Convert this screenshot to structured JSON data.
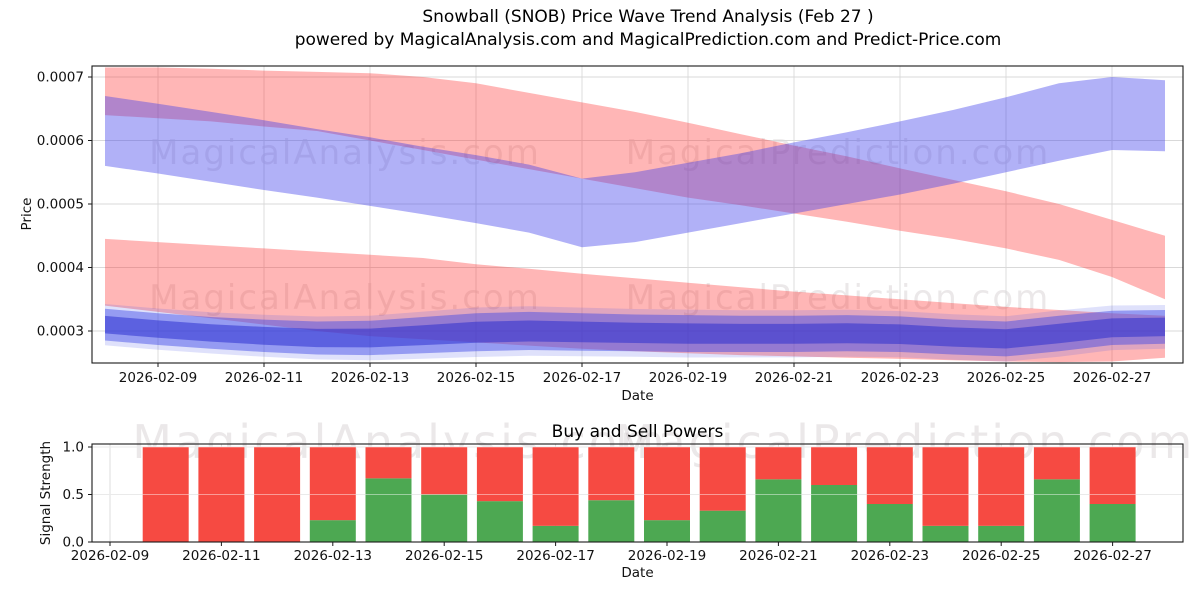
{
  "title": {
    "line1": "Snowball (SNOB) Price Wave Trend Analysis (Feb 27 )",
    "line2": "powered by MagicalAnalysis.com and MagicalPrediction.com and Predict-Price.com"
  },
  "watermarks": {
    "analysis": "MagicalAnalysis.com",
    "prediction": "MagicalPrediction.com"
  },
  "colors": {
    "band_red": "rgba(255,45,45,0.35)",
    "band_blue": "rgba(60,60,235,0.40)",
    "price_band_outer": "rgba(60,70,230,0.45)",
    "price_band_inner": "rgba(35,40,205,0.50)",
    "price_band_fringe": "rgba(80,90,235,0.18)",
    "bar_green": "#4da852",
    "bar_red": "#f64a42",
    "grid": "#d9d9d9",
    "grid_over_bars": "rgba(255,255,255,0.45)",
    "spine": "#1a1a1a",
    "watermark": "rgba(120,100,105,0.15)",
    "text": "#111111"
  },
  "chart_data": [
    {
      "id": "price_wave_trend",
      "type": "area",
      "xlabel": "Date",
      "ylabel": "Price",
      "grid": true,
      "legend": "none",
      "ylim": [
        0.00025,
        0.000717
      ],
      "x_ticks": [
        "2026-02-09",
        "2026-02-11",
        "2026-02-13",
        "2026-02-15",
        "2026-02-17",
        "2026-02-19",
        "2026-02-21",
        "2026-02-23",
        "2026-02-25",
        "2026-02-27"
      ],
      "y_ticks": [
        {
          "v": 0.0003,
          "label": "0.0003"
        },
        {
          "v": 0.0004,
          "label": "0.0004"
        },
        {
          "v": 0.0005,
          "label": "0.0005"
        },
        {
          "v": 0.0006,
          "label": "0.0006"
        },
        {
          "v": 0.0007,
          "label": "0.0007"
        }
      ],
      "dates": [
        "2026-02-08",
        "2026-02-09",
        "2026-02-10",
        "2026-02-11",
        "2026-02-12",
        "2026-02-13",
        "2026-02-14",
        "2026-02-15",
        "2026-02-16",
        "2026-02-17",
        "2026-02-18",
        "2026-02-19",
        "2026-02-20",
        "2026-02-21",
        "2026-02-22",
        "2026-02-23",
        "2026-02-24",
        "2026-02-25",
        "2026-02-26",
        "2026-02-27",
        "2026-02-28"
      ],
      "series": [
        {
          "name": "sell-wave-upper",
          "kind": "band",
          "color_key": "band_red",
          "lower": [
            0.00064,
            0.000635,
            0.00063,
            0.000622,
            0.000615,
            0.0006,
            0.000585,
            0.00057,
            0.000555,
            0.00054,
            0.000525,
            0.00051,
            0.000498,
            0.000485,
            0.000472,
            0.000458,
            0.000445,
            0.00043,
            0.000412,
            0.000385,
            0.00035
          ],
          "upper": [
            0.000715,
            0.000715,
            0.000713,
            0.00071,
            0.000708,
            0.000706,
            0.0007,
            0.00069,
            0.000675,
            0.00066,
            0.000645,
            0.000628,
            0.00061,
            0.000592,
            0.000575,
            0.000556,
            0.000538,
            0.00052,
            0.0005,
            0.000475,
            0.00045
          ]
        },
        {
          "name": "buy-wave-upper",
          "kind": "band",
          "color_key": "band_blue",
          "lower": [
            0.00056,
            0.000548,
            0.000535,
            0.000522,
            0.00051,
            0.000497,
            0.000484,
            0.00047,
            0.000455,
            0.000432,
            0.00044,
            0.000455,
            0.00047,
            0.000485,
            0.0005,
            0.000515,
            0.000532,
            0.00055,
            0.000568,
            0.000585,
            0.000583
          ],
          "upper": [
            0.00067,
            0.000658,
            0.000645,
            0.000632,
            0.000618,
            0.000605,
            0.00059,
            0.000577,
            0.000562,
            0.00054,
            0.00055,
            0.000565,
            0.00058,
            0.000597,
            0.000613,
            0.00063,
            0.000648,
            0.000668,
            0.00069,
            0.0007,
            0.000695
          ]
        },
        {
          "name": "sell-wave-lower",
          "kind": "band",
          "color_key": "band_red",
          "lower": [
            0.00034,
            0.00033,
            0.00032,
            0.00031,
            0.0003,
            0.000292,
            0.000287,
            0.000282,
            0.000277,
            0.000272,
            0.000268,
            0.000265,
            0.000262,
            0.00026,
            0.000258,
            0.000256,
            0.000254,
            0.000252,
            0.000251,
            0.000252,
            0.000258
          ],
          "upper": [
            0.000445,
            0.00044,
            0.000435,
            0.00043,
            0.000425,
            0.00042,
            0.000415,
            0.000405,
            0.000398,
            0.00039,
            0.000383,
            0.000376,
            0.000369,
            0.000362,
            0.000356,
            0.00035,
            0.000344,
            0.000338,
            0.000333,
            0.000328,
            0.000324
          ]
        },
        {
          "name": "price-band",
          "kind": "layered-band",
          "color_key": "price_band_outer",
          "lower": [
            0.000285,
            0.000278,
            0.000272,
            0.000267,
            0.000263,
            0.000262,
            0.000265,
            0.000268,
            0.00027,
            0.000269,
            0.000268,
            0.000267,
            0.000267,
            0.000267,
            0.000268,
            0.000267,
            0.000263,
            0.00026,
            0.000268,
            0.000278,
            0.00028
          ],
          "upper": [
            0.000335,
            0.000328,
            0.000322,
            0.000318,
            0.000315,
            0.000316,
            0.000322,
            0.000328,
            0.00033,
            0.000328,
            0.000326,
            0.000325,
            0.000324,
            0.000324,
            0.000325,
            0.000323,
            0.000318,
            0.000315,
            0.000324,
            0.000332,
            0.000333
          ]
        }
      ]
    },
    {
      "id": "buy_sell_powers",
      "type": "bar",
      "title": "Buy and Sell Powers",
      "xlabel": "Date",
      "ylabel": "Signal Strength",
      "stacked": true,
      "ylim": [
        0,
        1.05
      ],
      "x_ticks": [
        "2026-02-09",
        "2026-02-11",
        "2026-02-13",
        "2026-02-15",
        "2026-02-17",
        "2026-02-19",
        "2026-02-21",
        "2026-02-23",
        "2026-02-25",
        "2026-02-27"
      ],
      "y_ticks": [
        {
          "v": 0.0,
          "label": "0.0"
        },
        {
          "v": 0.5,
          "label": "0.5"
        },
        {
          "v": 1.0,
          "label": "1.0"
        }
      ],
      "categories": [
        "2026-02-10",
        "2026-02-11",
        "2026-02-12",
        "2026-02-13",
        "2026-02-14",
        "2026-02-15",
        "2026-02-16",
        "2026-02-17",
        "2026-02-18",
        "2026-02-19",
        "2026-02-20",
        "2026-02-21",
        "2026-02-22",
        "2026-02-23",
        "2026-02-24",
        "2026-02-25",
        "2026-02-26",
        "2026-02-27"
      ],
      "series": [
        {
          "name": "Buy",
          "color_key": "bar_green",
          "values": [
            0.0,
            0.0,
            0.0,
            0.23,
            0.67,
            0.5,
            0.43,
            0.17,
            0.44,
            0.23,
            0.33,
            0.66,
            0.6,
            0.4,
            0.17,
            0.17,
            0.66,
            0.4
          ]
        },
        {
          "name": "Sell",
          "color_key": "bar_red",
          "values": [
            1.0,
            1.0,
            1.0,
            0.77,
            0.33,
            0.5,
            0.57,
            0.83,
            0.56,
            0.77,
            0.67,
            0.34,
            0.4,
            0.6,
            0.83,
            0.83,
            0.34,
            0.6
          ]
        }
      ]
    }
  ]
}
